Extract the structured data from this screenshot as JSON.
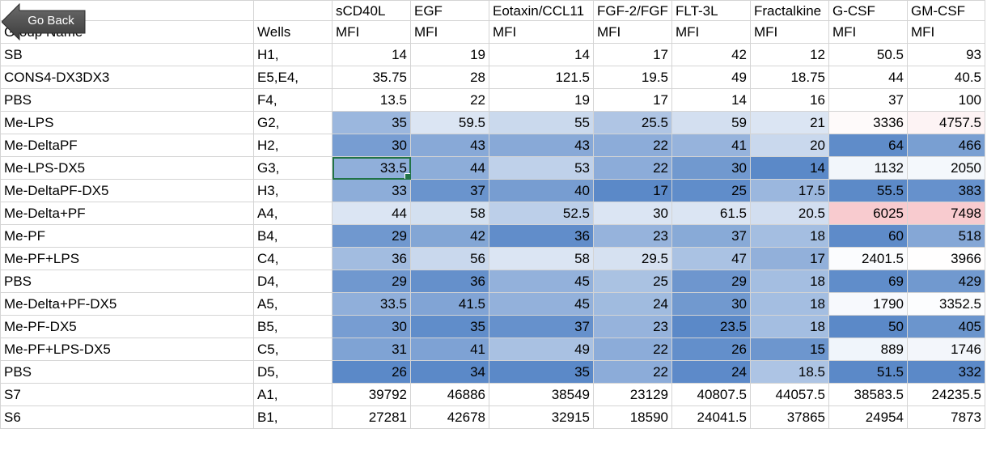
{
  "buttons": {
    "go_back_label": "Go Back"
  },
  "header": {
    "top": [
      "",
      "",
      "sCD40L",
      "EGF",
      "Eotaxin/CCL11",
      "FGF-2/FGF",
      "FLT-3L",
      "Fractalkine",
      "G-CSF",
      "GM-CSF"
    ],
    "bottom": [
      "Group Name",
      "Wells",
      "MFI",
      "MFI",
      "MFI",
      "MFI",
      "MFI",
      "MFI",
      "MFI",
      "MFI"
    ]
  },
  "rows": [
    [
      "SB",
      "H1,",
      "14",
      "19",
      "14",
      "17",
      "42",
      "12",
      "50.5",
      "93"
    ],
    [
      "CONS4-DX3DX3",
      "E5,E4,",
      "35.75",
      "28",
      "121.5",
      "19.5",
      "49",
      "18.75",
      "44",
      "40.5"
    ],
    [
      "PBS",
      "F4,",
      "13.5",
      "22",
      "19",
      "17",
      "14",
      "16",
      "37",
      "100"
    ],
    [
      "Me-LPS",
      "G2,",
      "35",
      "59.5",
      "55",
      "25.5",
      "59",
      "21",
      "3336",
      "4757.5"
    ],
    [
      "Me-DeltaPF",
      "H2,",
      "30",
      "43",
      "43",
      "22",
      "41",
      "20",
      "64",
      "466"
    ],
    [
      "Me-LPS-DX5",
      "G3,",
      "33.5",
      "44",
      "53",
      "22",
      "30",
      "14",
      "1132",
      "2050"
    ],
    [
      "Me-DeltaPF-DX5",
      "H3,",
      "33",
      "37",
      "40",
      "17",
      "25",
      "17.5",
      "55.5",
      "383"
    ],
    [
      "Me-Delta+PF",
      "A4,",
      "44",
      "58",
      "52.5",
      "30",
      "61.5",
      "20.5",
      "6025",
      "7498"
    ],
    [
      "Me-PF",
      "B4,",
      "29",
      "42",
      "36",
      "23",
      "37",
      "18",
      "60",
      "518"
    ],
    [
      "Me-PF+LPS",
      "C4,",
      "36",
      "56",
      "58",
      "29.5",
      "47",
      "17",
      "2401.5",
      "3966"
    ],
    [
      "PBS",
      "D4,",
      "29",
      "36",
      "45",
      "25",
      "29",
      "18",
      "69",
      "429"
    ],
    [
      "Me-Delta+PF-DX5",
      "A5,",
      "33.5",
      "41.5",
      "45",
      "24",
      "30",
      "18",
      "1790",
      "3352.5"
    ],
    [
      "Me-PF-DX5",
      "B5,",
      "30",
      "35",
      "37",
      "23",
      "23.5",
      "18",
      "50",
      "405"
    ],
    [
      "Me-PF+LPS-DX5",
      "C5,",
      "31",
      "41",
      "49",
      "22",
      "26",
      "15",
      "889",
      "1746"
    ],
    [
      "PBS",
      "D5,",
      "26",
      "34",
      "35",
      "22",
      "24",
      "18.5",
      "51.5",
      "332"
    ],
    [
      "S7",
      "A1,",
      "39792",
      "46886",
      "38549",
      "23129",
      "40807.5",
      "44057.5",
      "38583.5",
      "24235.5"
    ],
    [
      "S6",
      "B1,",
      "27281",
      "42678",
      "32915",
      "18590",
      "24041.5",
      "37865",
      "24954",
      "7873"
    ]
  ],
  "heatmap": {
    "colored_rows": [
      3,
      4,
      5,
      6,
      7,
      8,
      9,
      10,
      11,
      12,
      13,
      14
    ],
    "blue_low": "#5b89c8",
    "blue_high": "#dbe5f3",
    "white_mid": "#ffffff",
    "red_high": "#f8cbcf"
  },
  "selection": {
    "row": 5,
    "col": 2,
    "border_color": "#217346"
  },
  "colors": {
    "gridline": "#d4d4d4",
    "button_fill": "#555555"
  }
}
